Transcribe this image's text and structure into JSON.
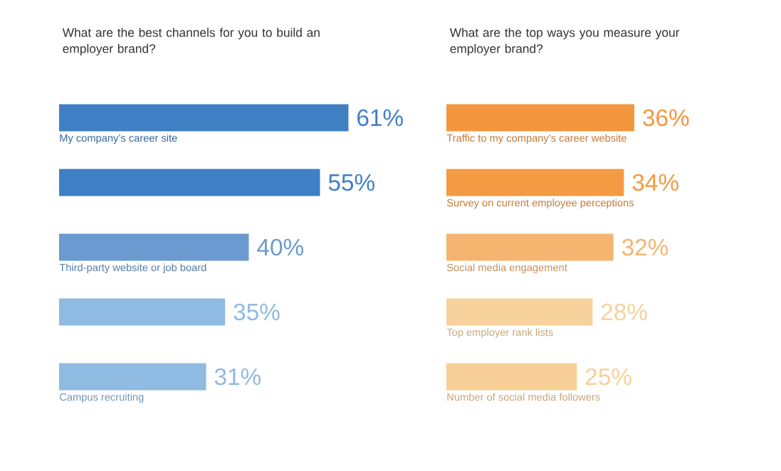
{
  "chart_data": [
    {
      "type": "bar",
      "orientation": "horizontal",
      "title": "What are the best channels for you to build an employer brand?",
      "categories": [
        "My company’s career site",
        null,
        "Third-party website or job board",
        null,
        "Campus recruiting"
      ],
      "values": [
        61,
        55,
        40,
        35,
        31
      ],
      "colors": [
        "#3f7fc4",
        "#3f7fc4",
        "#6a9ad0",
        "#8fbae2",
        "#8fbae2"
      ],
      "value_labels": [
        "61%",
        "55%",
        "40%",
        "35%",
        "31%"
      ]
    },
    {
      "type": "bar",
      "orientation": "horizontal",
      "title": "What are the top ways you measure your employer brand?",
      "categories": [
        "Traffic to my company’s career website",
        "Survey on current employee perceptions",
        "Social media engagement",
        "Top employer rank lists",
        "Number of social media followers"
      ],
      "values": [
        36,
        34,
        32,
        28,
        25
      ],
      "colors": [
        "#f4963e",
        "#f49a42",
        "#f5b470",
        "#f8d29c",
        "#f8cf96"
      ],
      "value_labels": [
        "36%",
        "34%",
        "32%",
        "28%",
        "25%"
      ]
    }
  ]
}
